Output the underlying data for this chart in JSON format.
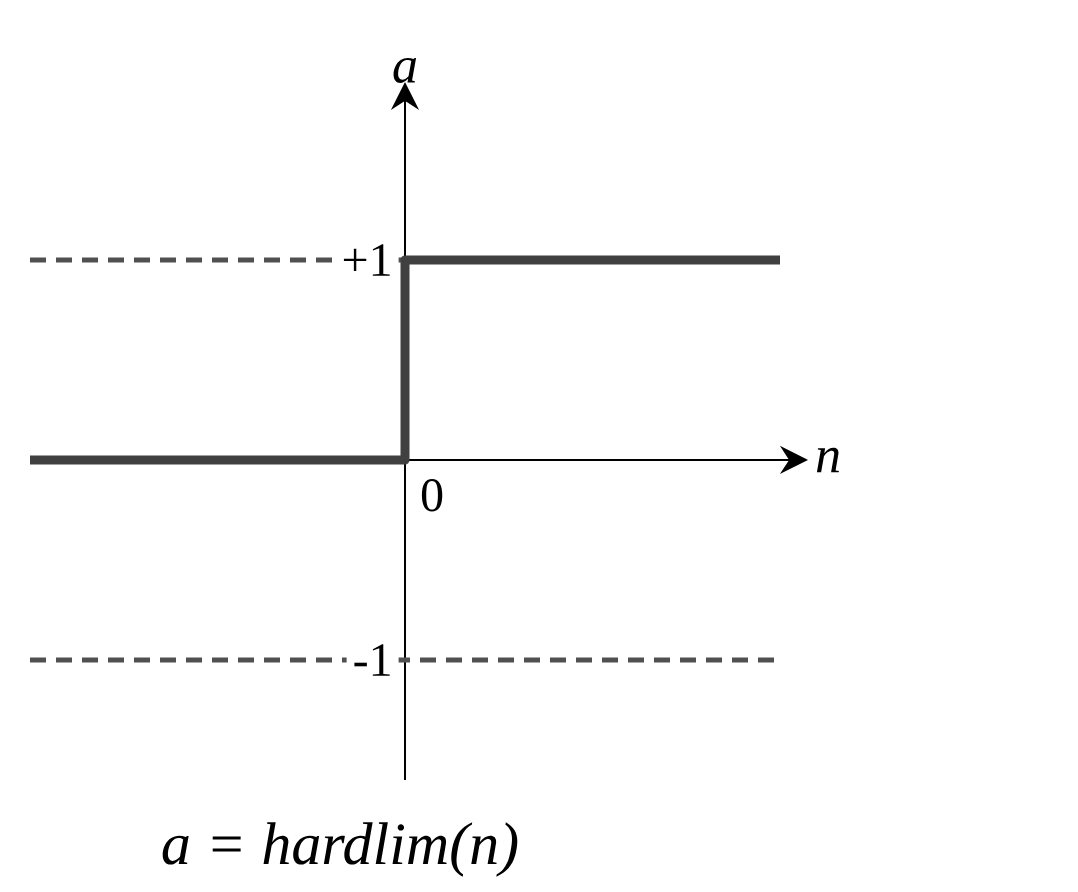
{
  "chart_data": {
    "type": "step",
    "xlabel": "n",
    "ylabel": "a",
    "annotations": [
      "a = hardlim(n)",
      "0"
    ],
    "categories": [
      null,
      null,
      null
    ],
    "series": [
      {
        "color": "#404040",
        "values": [
          0,
          1,
          1
        ]
      }
    ],
    "ylim": [
      -1.6,
      1.75
    ],
    "yticks": [
      {
        "value": 1,
        "label": "+1"
      },
      {
        "value": -1,
        "label": "-1"
      }
    ],
    "ref_lines": [
      {
        "axis": "y",
        "value": 1,
        "line_style": "dashed",
        "color": "#505050"
      },
      {
        "axis": "y",
        "value": -1,
        "line_style": "dashed",
        "color": "#505050"
      }
    ],
    "marker": "none",
    "line_style": "solid"
  }
}
